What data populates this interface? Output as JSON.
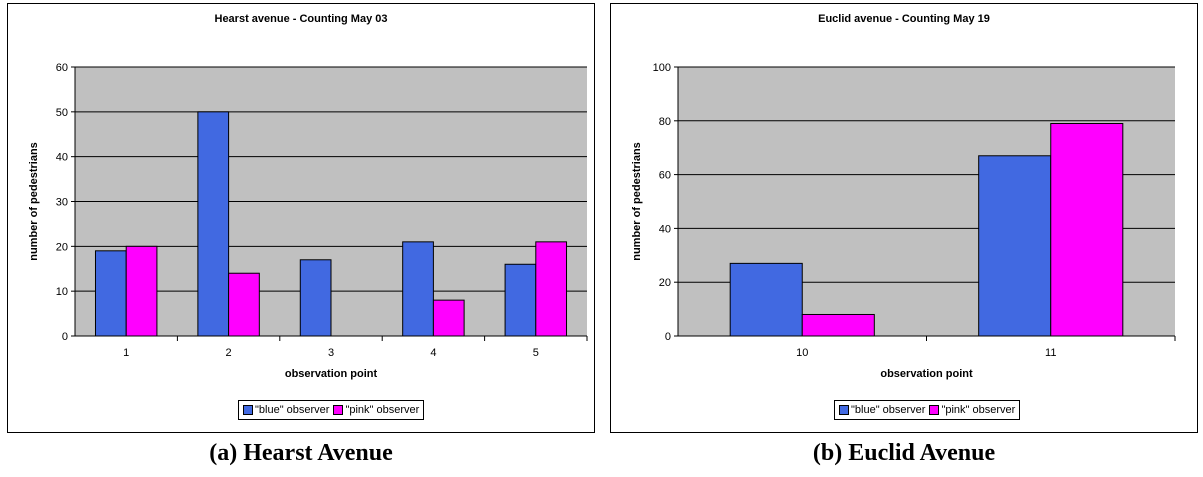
{
  "chart_data": [
    {
      "type": "bar",
      "title": "Hearst avenue - Counting May 03",
      "xlabel": "observation point",
      "ylabel": "number of pedestrians",
      "categories": [
        "1",
        "2",
        "3",
        "4",
        "5"
      ],
      "ylim": [
        0,
        60
      ],
      "yticks": [
        0,
        10,
        20,
        30,
        40,
        50,
        60
      ],
      "grid": true,
      "legend_position": "bottom",
      "series": [
        {
          "name": "\"blue\" observer",
          "color": "#4169E1",
          "values": [
            19,
            50,
            17,
            21,
            16
          ]
        },
        {
          "name": "\"pink\" observer",
          "color": "#FF00FF",
          "values": [
            20,
            14,
            0,
            8,
            21
          ]
        }
      ]
    },
    {
      "type": "bar",
      "title": "Euclid avenue - Counting May 19",
      "xlabel": "observation point",
      "ylabel": "number of pedestrians",
      "categories": [
        "10",
        "11"
      ],
      "ylim": [
        0,
        100
      ],
      "yticks": [
        0,
        20,
        40,
        60,
        80,
        100
      ],
      "grid": true,
      "legend_position": "bottom",
      "series": [
        {
          "name": "\"blue\" observer",
          "color": "#4169E1",
          "values": [
            27,
            67
          ]
        },
        {
          "name": "\"pink\" observer",
          "color": "#FF00FF",
          "values": [
            8,
            79
          ]
        }
      ]
    }
  ],
  "captions": {
    "a": "(a) Hearst Avenue",
    "b": "(b) Euclid Avenue"
  },
  "style": {
    "plot_background": "#C0C0C0",
    "gridline": "#000000"
  }
}
